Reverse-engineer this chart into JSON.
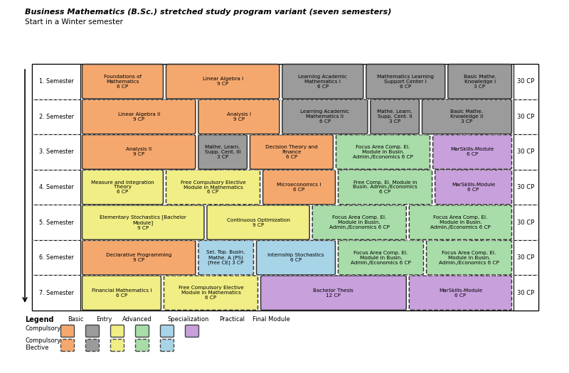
{
  "title": "Business Mathematics (B.Sc.) stretched study program variant (seven semesters)",
  "subtitle": "Start in a Winter semester",
  "colors": {
    "orange": "#F5A86E",
    "gray": "#9B9B9B",
    "yellow": "#F0EE84",
    "green": "#A8DCA8",
    "lightblue": "#A8D4E8",
    "purple": "#C8A0DC",
    "white": "#FFFFFF",
    "black": "#000000",
    "dashed_border": "#555555"
  },
  "sem_labels": [
    "1. Semester",
    "2. Semester",
    "3. Semester",
    "4. Semester",
    "5. Semester",
    "6. Semester",
    "7. Semester"
  ],
  "modules": [
    [
      {
        "text": "Foundations of\nMathematics\n6 CP",
        "color": "#F5A86E",
        "dashed": false,
        "xf": 0.0,
        "wf": 0.19
      },
      {
        "text": "Linear Algebra I\n9 CP",
        "color": "#F5A86E",
        "dashed": false,
        "xf": 0.195,
        "wf": 0.265
      },
      {
        "text": "Learning Academic\nMathematics I\n6 CP",
        "color": "#9B9B9B",
        "dashed": false,
        "xf": 0.465,
        "wf": 0.19
      },
      {
        "text": "Mathematics Learning\nSupport Center I\n6 CP",
        "color": "#9B9B9B",
        "dashed": false,
        "xf": 0.66,
        "wf": 0.185
      },
      {
        "text": "Basic Mathe.\nKnowledge I\n3 CP",
        "color": "#9B9B9B",
        "dashed": false,
        "xf": 0.85,
        "wf": 0.15
      }
    ],
    [
      {
        "text": "Linear Algebra II\n9 CP",
        "color": "#F5A86E",
        "dashed": false,
        "xf": 0.0,
        "wf": 0.265
      },
      {
        "text": "Analysis I\n9 CP",
        "color": "#F5A86E",
        "dashed": false,
        "xf": 0.27,
        "wf": 0.19
      },
      {
        "text": "Learning Academic\nMathematics II\n6 CP",
        "color": "#9B9B9B",
        "dashed": false,
        "xf": 0.465,
        "wf": 0.2
      },
      {
        "text": "Mathe. Learn.\nSupp. Cent. II\n3 CP",
        "color": "#9B9B9B",
        "dashed": false,
        "xf": 0.67,
        "wf": 0.115
      },
      {
        "text": "Basic Mathe.\nKnowledge II\n3 CP",
        "color": "#9B9B9B",
        "dashed": false,
        "xf": 0.79,
        "wf": 0.21
      }
    ],
    [
      {
        "text": "Analysis II\n9 CP",
        "color": "#F5A86E",
        "dashed": false,
        "xf": 0.0,
        "wf": 0.265
      },
      {
        "text": "Mathe. Learn.\nSupp. Cent. III\n3 CP",
        "color": "#9B9B9B",
        "dashed": false,
        "xf": 0.27,
        "wf": 0.115
      },
      {
        "text": "Decision Theory and\nFinance\n6 CP",
        "color": "#F5A86E",
        "dashed": false,
        "xf": 0.39,
        "wf": 0.195
      },
      {
        "text": "Focus Area Comp. El.\nModule in Busin.\nAdmin./Economics 6 CP",
        "color": "#A8DCA8",
        "dashed": true,
        "xf": 0.59,
        "wf": 0.22
      },
      {
        "text": "MarSkills-Module\n6 CP",
        "color": "#C8A0DC",
        "dashed": true,
        "xf": 0.815,
        "wf": 0.185
      }
    ],
    [
      {
        "text": "Measure and Integration\nTheory\n6 CP",
        "color": "#F0EE84",
        "dashed": false,
        "xf": 0.0,
        "wf": 0.19
      },
      {
        "text": "Free Compulsory Elective\nModule in Mathematics\n6 CP",
        "color": "#F0EE84",
        "dashed": true,
        "xf": 0.195,
        "wf": 0.22
      },
      {
        "text": "Microeconomics I\n6 CP",
        "color": "#F5A86E",
        "dashed": false,
        "xf": 0.42,
        "wf": 0.17
      },
      {
        "text": "Free Comp. El. Module in\nBusin. Admin./Economics\n6 CP",
        "color": "#A8DCA8",
        "dashed": true,
        "xf": 0.595,
        "wf": 0.22
      },
      {
        "text": "MarSkills-Module\n6 CP",
        "color": "#C8A0DC",
        "dashed": true,
        "xf": 0.82,
        "wf": 0.18
      }
    ],
    [
      {
        "text": "Elementary Stochastics [Bachelor\nModule]\n9 CP",
        "color": "#F0EE84",
        "dashed": false,
        "xf": 0.0,
        "wf": 0.285
      },
      {
        "text": "Continuous Optimization\n9 CP",
        "color": "#F0EE84",
        "dashed": false,
        "xf": 0.29,
        "wf": 0.24
      },
      {
        "text": "Focus Area Comp. El.\nModule in Busin.\nAdmin./Economics 6 CP",
        "color": "#A8DCA8",
        "dashed": true,
        "xf": 0.535,
        "wf": 0.22
      },
      {
        "text": "Focus Area Comp. El.\nModule in Busin.\nAdmin./Economics 6 CP",
        "color": "#A8DCA8",
        "dashed": true,
        "xf": 0.76,
        "wf": 0.24
      }
    ],
    [
      {
        "text": "Declarative Programming\n9 CP",
        "color": "#F5A86E",
        "dashed": false,
        "xf": 0.0,
        "wf": 0.265
      },
      {
        "text": "Sel. Top. Busin.\nMathe. A (PS)\n(free CE) 3 CP",
        "color": "#A8D4E8",
        "dashed": true,
        "xf": 0.27,
        "wf": 0.13
      },
      {
        "text": "Internship Stochastics\n6 CP",
        "color": "#A8D4E8",
        "dashed": false,
        "xf": 0.405,
        "wf": 0.185
      },
      {
        "text": "Focus Area Comp. El.\nModule in Busin.\nAdmin./Economics 6 CP",
        "color": "#A8DCA8",
        "dashed": true,
        "xf": 0.595,
        "wf": 0.2
      },
      {
        "text": "Focus Area Comp. El.\nModule in Busin.\nAdmin./Economics 6 CP",
        "color": "#A8DCA8",
        "dashed": true,
        "xf": 0.8,
        "wf": 0.2
      }
    ],
    [
      {
        "text": "Financial Mathematics I\n6 CP",
        "color": "#F0EE84",
        "dashed": false,
        "xf": 0.0,
        "wf": 0.185
      },
      {
        "text": "Free Compulsory Elective\nModule in Mathematics\n6 CP",
        "color": "#F0EE84",
        "dashed": true,
        "xf": 0.19,
        "wf": 0.22
      },
      {
        "text": "Bachelor Thesis\n12 CP",
        "color": "#C8A0DC",
        "dashed": false,
        "xf": 0.415,
        "wf": 0.34
      },
      {
        "text": "MarSkills-Module\n6 CP",
        "color": "#C8A0DC",
        "dashed": true,
        "xf": 0.76,
        "wf": 0.24
      }
    ]
  ],
  "legend_categories": [
    "Basic",
    "Entry",
    "Advanced",
    "Specialization",
    "Practical",
    "Final Module"
  ],
  "legend_colors_comp": [
    "#F5A86E",
    "#9B9B9B",
    "#F0EE84",
    "#A8DCA8",
    "#A8D4E8",
    "#C8A0DC"
  ],
  "legend_colors_elec": [
    "#F5A86E",
    "#9B9B9B",
    "#F0EE84",
    "#A8DCA8",
    "#A8D4E8"
  ]
}
